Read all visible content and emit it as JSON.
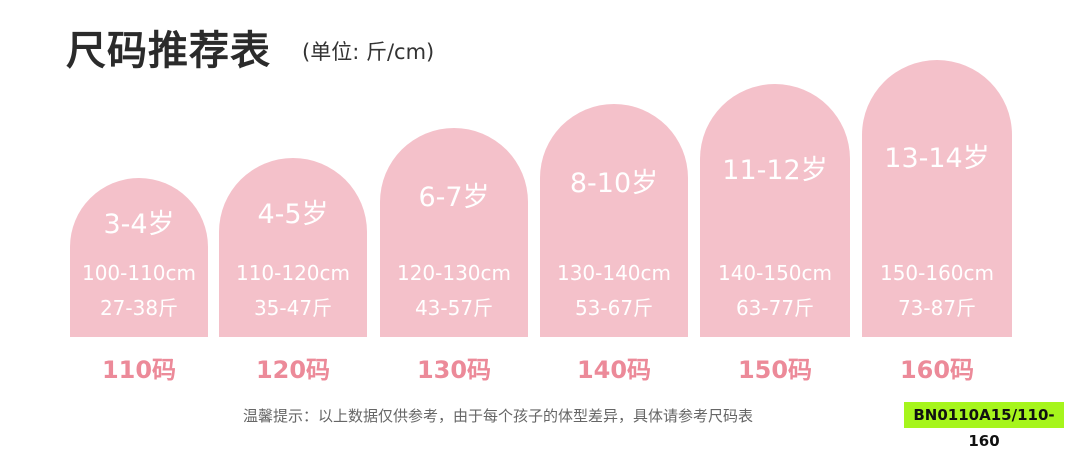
{
  "title": "尺码推荐表",
  "unit": "(单位: 斤/cm)",
  "colors": {
    "arch": "#f4c1ca",
    "size_label": "#ec8a99",
    "code_bg": "#a6f51c"
  },
  "sizes": [
    {
      "age": "3-4岁",
      "height": "100-110cm",
      "weight": "27-38斤",
      "size": "110码"
    },
    {
      "age": "4-5岁",
      "height": "110-120cm",
      "weight": "35-47斤",
      "size": "120码"
    },
    {
      "age": "6-7岁",
      "height": "120-130cm",
      "weight": "43-57斤",
      "size": "130码"
    },
    {
      "age": "8-10岁",
      "height": "130-140cm",
      "weight": "53-67斤",
      "size": "140码"
    },
    {
      "age": "11-12岁",
      "height": "140-150cm",
      "weight": "63-77斤",
      "size": "150码"
    },
    {
      "age": "13-14岁",
      "height": "150-160cm",
      "weight": "73-87斤",
      "size": "160码"
    }
  ],
  "tip": "温馨提示：以上数据仅供参考，由于每个孩子的体型差异，具体请参考尺码表",
  "code": "BN0110A15/110-160"
}
